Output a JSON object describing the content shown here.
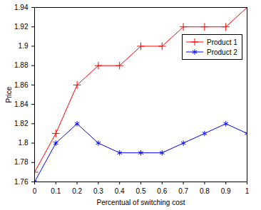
{
  "chart_data": {
    "type": "line",
    "x_label": "Percentual of switching cost",
    "y_label": "Price",
    "x": [
      0,
      0.1,
      0.2,
      0.3,
      0.4,
      0.5,
      0.6,
      0.7,
      0.8,
      0.9,
      1
    ],
    "series": [
      {
        "name": "Product 1",
        "color": "#ff0000",
        "marker": "plus",
        "values": [
          1.77,
          1.81,
          1.86,
          1.88,
          1.88,
          1.9,
          1.9,
          1.92,
          1.92,
          1.92,
          1.94
        ]
      },
      {
        "name": "Product 2",
        "color": "#0000ff",
        "marker": "asterisk",
        "values": [
          1.76,
          1.8,
          1.82,
          1.8,
          1.79,
          1.79,
          1.79,
          1.8,
          1.81,
          1.82,
          1.81
        ]
      }
    ],
    "xlim": [
      0,
      1
    ],
    "xticks": [
      0,
      0.1,
      0.2,
      0.3,
      0.4,
      0.5,
      0.6,
      0.7,
      0.8,
      0.9,
      1
    ],
    "ylim": [
      1.76,
      1.94
    ],
    "yticks": [
      1.76,
      1.78,
      1.8,
      1.82,
      1.84,
      1.86,
      1.88,
      1.9,
      1.92,
      1.94
    ],
    "grid": false,
    "legend": "upper right"
  }
}
